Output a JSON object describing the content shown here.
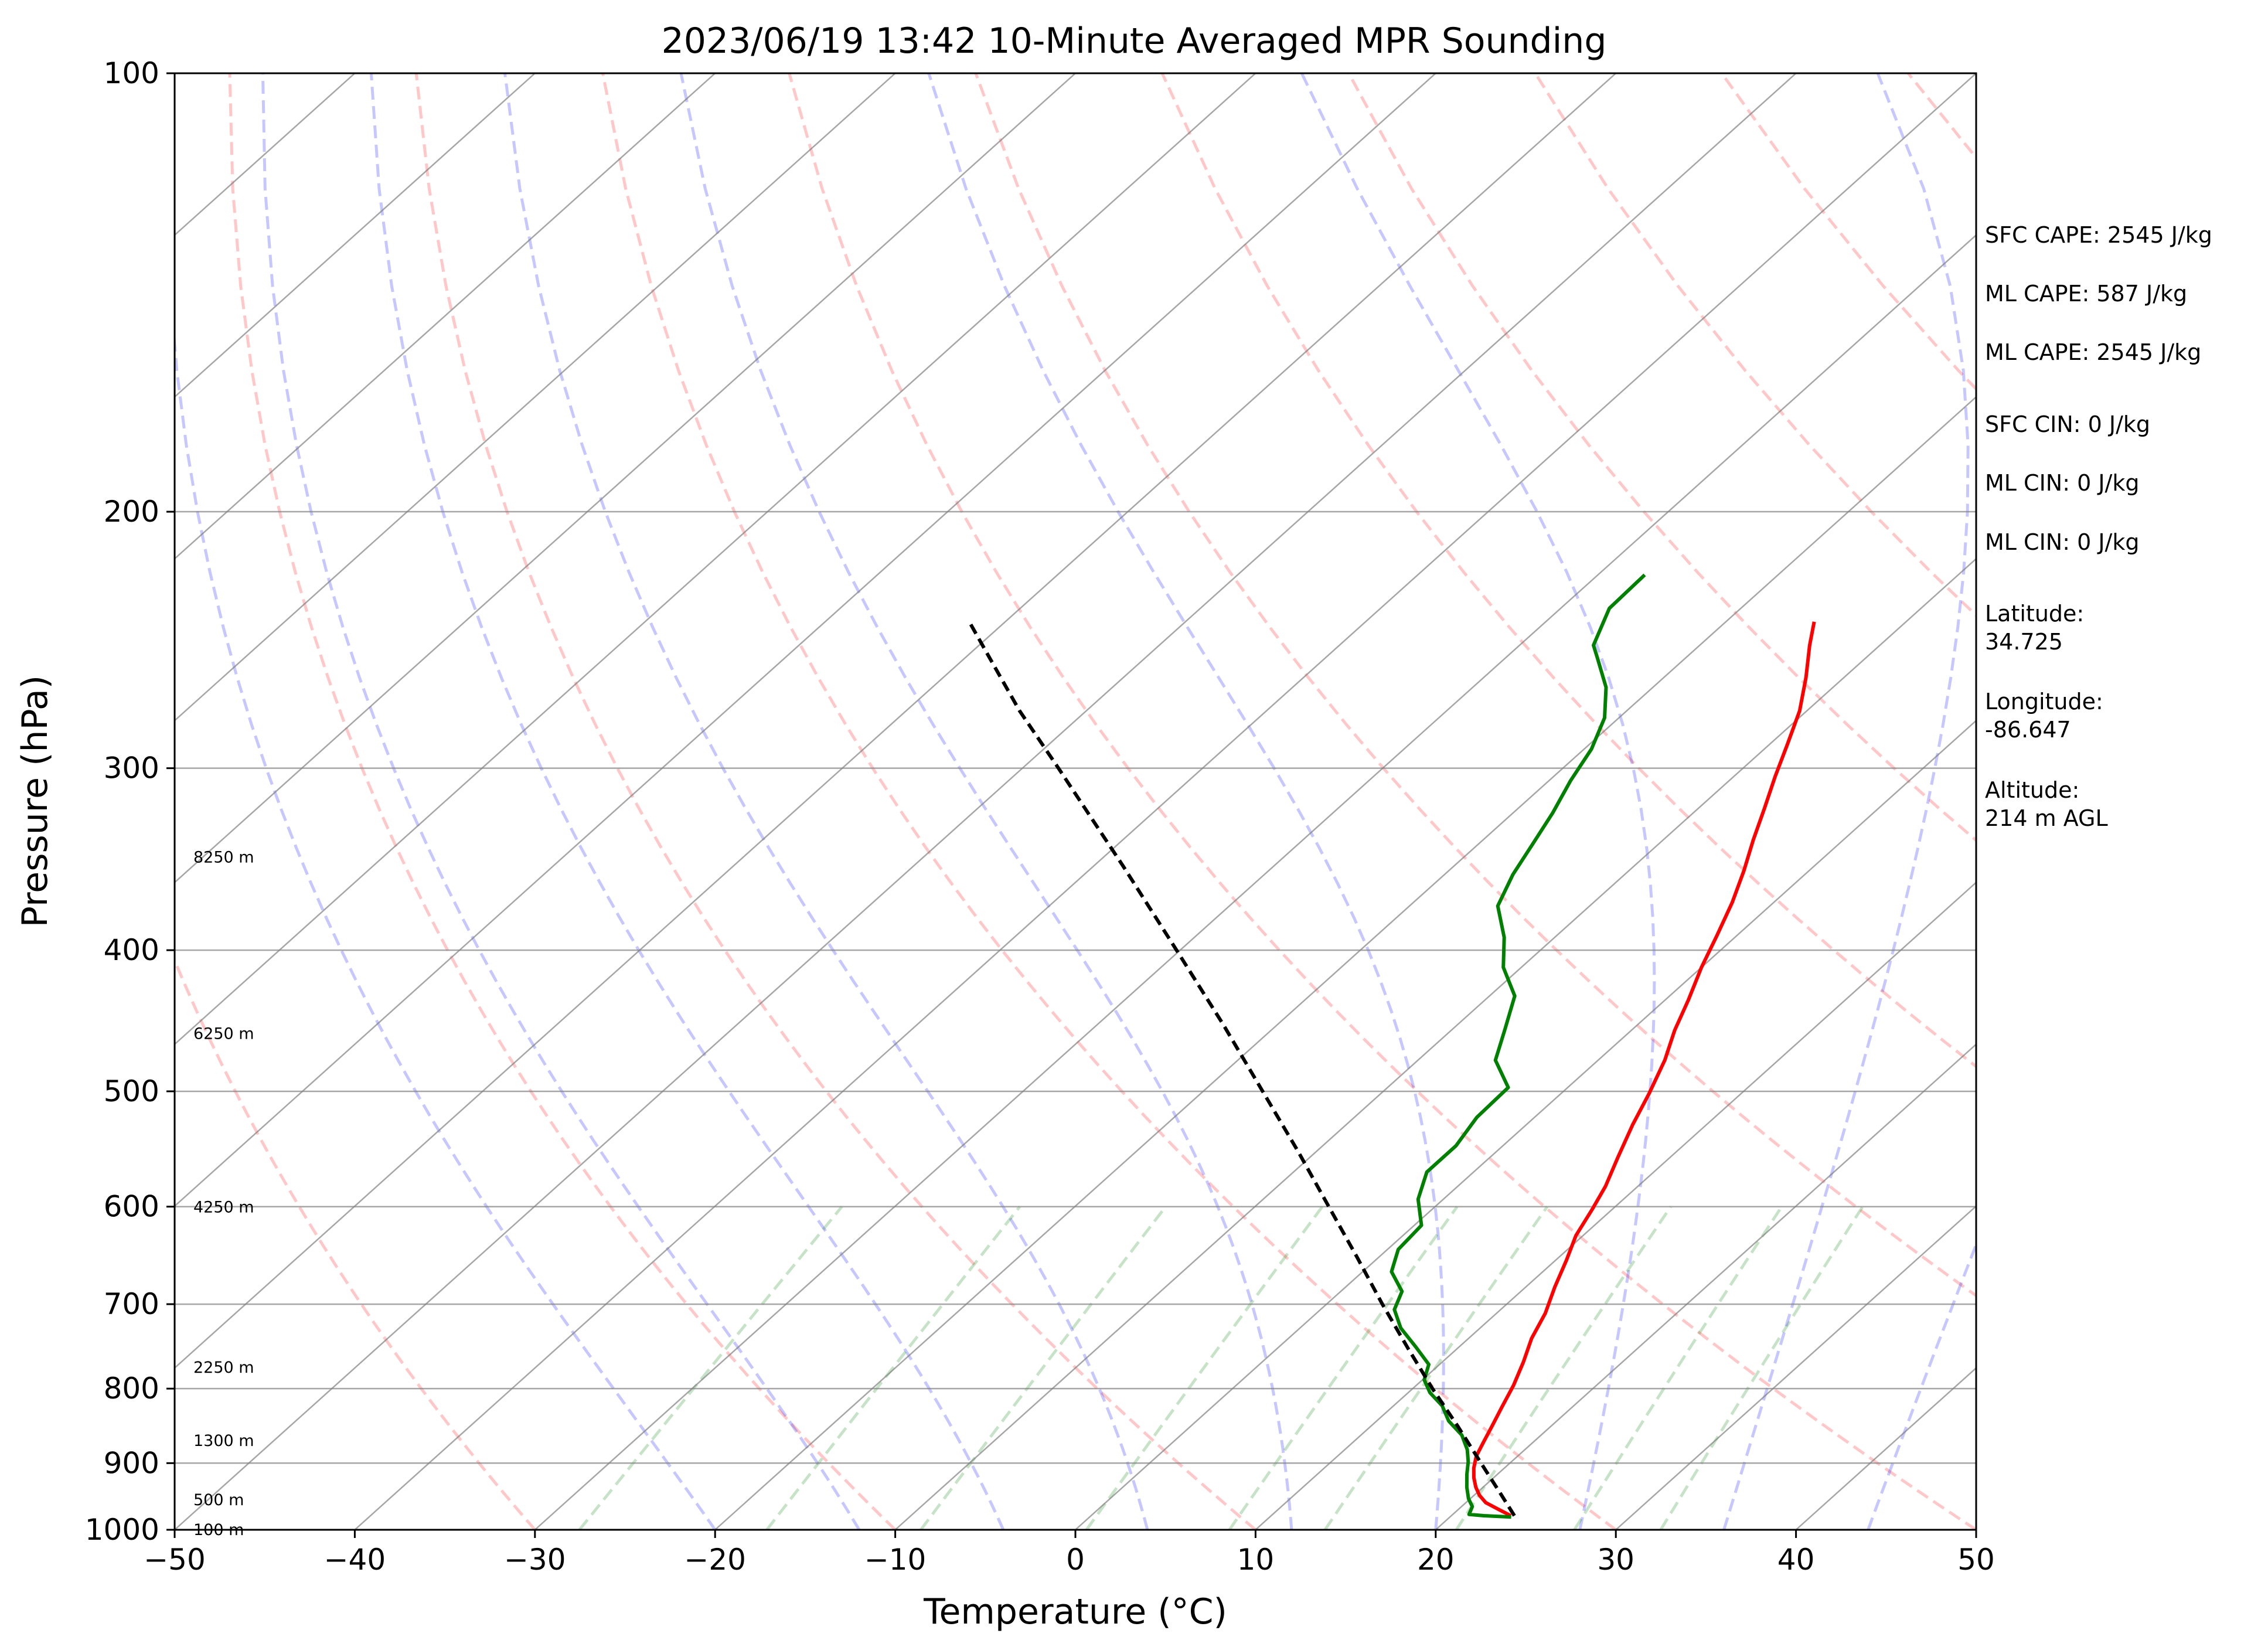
{
  "chart_data": {
    "type": "skew-t",
    "title": "2023/06/19 13:42 10-Minute Averaged MPR Sounding",
    "xlabel": "Temperature (°C)",
    "ylabel": "Pressure (hPa)",
    "xlim": [
      -50,
      50
    ],
    "ylim": [
      1000,
      100
    ],
    "y_scale": "log",
    "grid": "on",
    "x_ticks": [
      "−50",
      "−40",
      "−30",
      "−20",
      "−10",
      "0",
      "10",
      "20",
      "30",
      "40",
      "50"
    ],
    "y_ticks": [
      "1000",
      "900",
      "800",
      "700",
      "600",
      "500",
      "400",
      "300",
      "200",
      "100"
    ],
    "height_labels": [
      {
        "label": "100 m",
        "pressure": 999
      },
      {
        "label": "500 m",
        "pressure": 953
      },
      {
        "label": "1300 m",
        "pressure": 868
      },
      {
        "label": "2250 m",
        "pressure": 773
      },
      {
        "label": "4250 m",
        "pressure": 600
      },
      {
        "label": "6250 m",
        "pressure": 456
      },
      {
        "label": "8250 m",
        "pressure": 345
      }
    ],
    "series": [
      {
        "color": "#ff0000",
        "style": "solid",
        "points": [
          [
            978,
            23.3
          ],
          [
            968,
            22.2
          ],
          [
            958,
            21.1
          ],
          [
            947,
            20.3
          ],
          [
            935,
            19.6
          ],
          [
            921,
            18.9
          ],
          [
            907,
            18.3
          ],
          [
            890,
            17.7
          ],
          [
            869,
            17.2
          ],
          [
            848,
            16.7
          ],
          [
            824,
            16.1
          ],
          [
            796,
            15.4
          ],
          [
            767,
            14.5
          ],
          [
            739,
            13.5
          ],
          [
            710,
            12.7
          ],
          [
            681,
            11.6
          ],
          [
            653,
            10.6
          ],
          [
            628,
            9.6
          ],
          [
            603,
            8.9
          ],
          [
            581,
            8.2
          ],
          [
            555,
            7.1
          ],
          [
            527,
            5.9
          ],
          [
            502,
            4.9
          ],
          [
            476,
            3.7
          ],
          [
            454,
            2.4
          ],
          [
            433,
            1.3
          ],
          [
            411,
            0.0
          ],
          [
            391,
            -1.1
          ],
          [
            371,
            -2.3
          ],
          [
            353,
            -3.6
          ],
          [
            336,
            -5.0
          ],
          [
            320,
            -6.3
          ],
          [
            304,
            -7.7
          ],
          [
            289,
            -9.0
          ],
          [
            274,
            -10.4
          ],
          [
            260,
            -12.1
          ],
          [
            247,
            -13.9
          ],
          [
            238,
            -15.1
          ]
        ]
      },
      {
        "color": "#008000",
        "style": "solid",
        "points": [
          [
            980,
            23.4
          ],
          [
            978,
            21.8
          ],
          [
            976,
            20.9
          ],
          [
            964,
            20.6
          ],
          [
            952,
            19.9
          ],
          [
            935,
            19.1
          ],
          [
            916,
            18.3
          ],
          [
            898,
            17.6
          ],
          [
            881,
            16.8
          ],
          [
            861,
            15.6
          ],
          [
            842,
            14.0
          ],
          [
            822,
            12.7
          ],
          [
            805,
            11.2
          ],
          [
            789,
            10.1
          ],
          [
            770,
            9.4
          ],
          [
            749,
            7.6
          ],
          [
            727,
            5.6
          ],
          [
            706,
            4.1
          ],
          [
            686,
            3.4
          ],
          [
            665,
            1.6
          ],
          [
            642,
            0.6
          ],
          [
            618,
            0.4
          ],
          [
            593,
            -1.4
          ],
          [
            568,
            -2.6
          ],
          [
            545,
            -2.6
          ],
          [
            521,
            -3.2
          ],
          [
            497,
            -3.3
          ],
          [
            476,
            -5.7
          ],
          [
            453,
            -7.1
          ],
          [
            430,
            -8.6
          ],
          [
            411,
            -11.0
          ],
          [
            392,
            -12.8
          ],
          [
            373,
            -15.1
          ],
          [
            355,
            -16.2
          ],
          [
            338,
            -17.0
          ],
          [
            322,
            -17.8
          ],
          [
            306,
            -18.8
          ],
          [
            291,
            -19.6
          ],
          [
            277,
            -20.8
          ],
          [
            264,
            -22.6
          ],
          [
            252,
            -24.9
          ],
          [
            247,
            -25.9
          ],
          [
            233,
            -27.3
          ],
          [
            221,
            -27.4
          ]
        ]
      },
      {
        "color": "#000000",
        "style": "dashed",
        "points": [
          [
            978,
            23.5
          ],
          [
            945,
            21.4
          ],
          [
            900,
            18.4
          ],
          [
            850,
            14.9
          ],
          [
            800,
            11.1
          ],
          [
            750,
            7.2
          ],
          [
            700,
            3.1
          ],
          [
            650,
            -1.2
          ],
          [
            600,
            -5.9
          ],
          [
            550,
            -11.0
          ],
          [
            500,
            -16.7
          ],
          [
            450,
            -23.0
          ],
          [
            400,
            -30.2
          ],
          [
            350,
            -38.4
          ],
          [
            300,
            -48.0
          ],
          [
            274,
            -53.7
          ],
          [
            253,
            -58.4
          ],
          [
            238,
            -62.0
          ]
        ]
      }
    ]
  },
  "side_panel": {
    "sfc_cape": "SFC CAPE: 2545 J/kg",
    "ml_cape_1": "ML CAPE: 587 J/kg",
    "ml_cape_2": "ML CAPE: 2545 J/kg",
    "sfc_cin": "SFC CIN: 0 J/kg",
    "ml_cin_1": "ML CIN: 0 J/kg",
    "ml_cin_2": "ML CIN: 0 J/kg",
    "latitude_label": "Latitude:",
    "latitude_value": "34.725",
    "longitude_label": "Longitude:",
    "longitude_value": "-86.647",
    "altitude_label": "Altitude:",
    "altitude_value": "214 m AGL"
  }
}
